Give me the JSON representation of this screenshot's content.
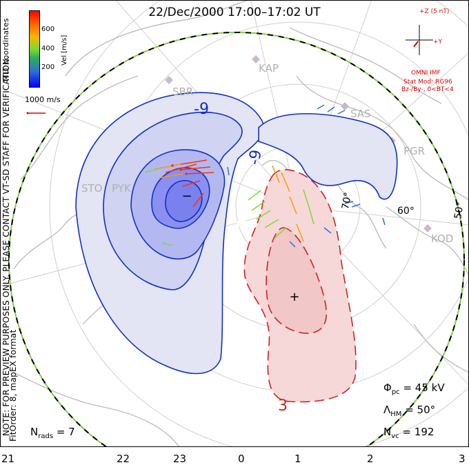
{
  "title": "22/Dec/2000 17:00–17:02 UT",
  "colorbar": {
    "label": "Vel [m/s]",
    "ticks": [
      "600",
      "400",
      "200"
    ],
    "colors": [
      "#0000ff",
      "#2e6fd6",
      "#2fae5a",
      "#7ddc32",
      "#ffb400",
      "#ff6a00",
      "#ff0000"
    ]
  },
  "coordinates_label": "MLT coordinates",
  "scale_vector": "1000 m/s",
  "watermark": "NOTE: FOR PREVIEW PURPOSES ONLY. PLEASE CONTACT VT-SD STAFF FOR VERIFICATION.",
  "fit_order": "FitOrder: 8, mapEX format",
  "imf": {
    "z_label": "+Z (5 nT)",
    "y_label": "+Y",
    "source": "OMNI IMF",
    "model": "Stat Mod: RG96",
    "condition": "Bz-/By-, 0<BT<4"
  },
  "stations": [
    "KAP",
    "SAS",
    "PGR",
    "KOD",
    "SBR",
    "STO",
    "PYK"
  ],
  "latitude_labels": [
    "70°",
    "60°",
    "50°"
  ],
  "mlt_labels": [
    "21",
    "22",
    "23",
    "0",
    "1",
    "2",
    "3"
  ],
  "contour_labels": [
    "-9",
    "-9",
    "3"
  ],
  "extrema": {
    "min_marker": "−",
    "max_marker": "+"
  },
  "stats": {
    "nrads": {
      "label": "N",
      "sub": "rads",
      "value": "= 7"
    },
    "phi_pc": {
      "label": "Φ",
      "sub": "pc",
      "value": "= 45 kV"
    },
    "lambda_hm": {
      "label": "Λ",
      "sub": "HM",
      "value": "= 50°"
    },
    "nvc": {
      "label": "N",
      "sub": "vc",
      "value": "= 192"
    }
  },
  "colors": {
    "negative_fill": "#e3e4f4",
    "negative_core": "#8a8ff0",
    "negative_line": "#1030c0",
    "positive_fill": "#f6d8d8",
    "positive_line": "#d02020",
    "boundary": "#80d040"
  }
}
